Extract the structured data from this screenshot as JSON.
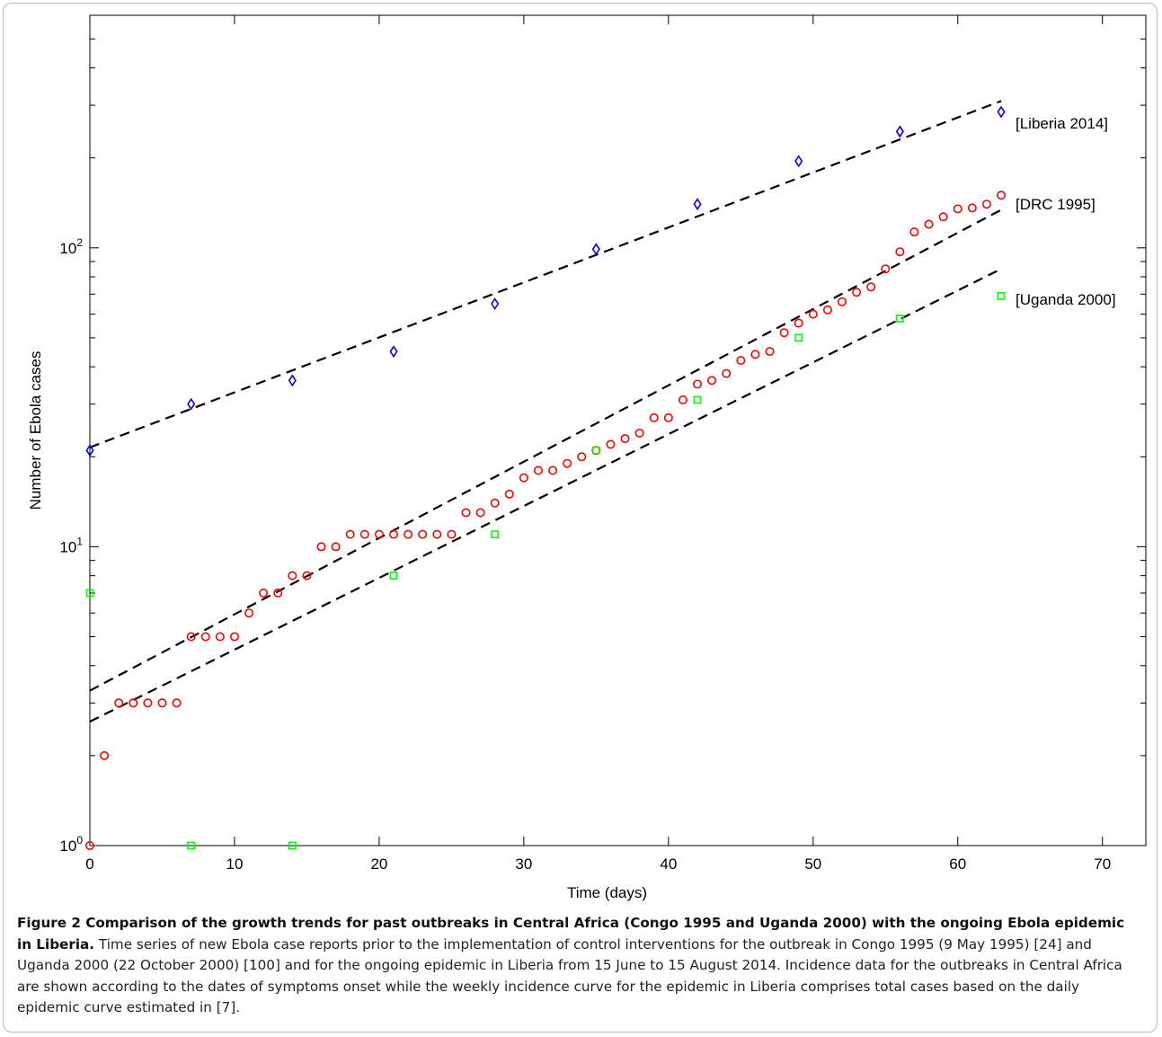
{
  "chart_data": {
    "type": "scatter",
    "xlabel": "Time (days)",
    "ylabel": "Number of Ebola cases",
    "xlim": [
      0,
      73
    ],
    "ylim": [
      1,
      600
    ],
    "yscale": "log",
    "xticks": [
      0,
      10,
      20,
      30,
      40,
      50,
      60,
      70
    ],
    "yticks": [
      {
        "value": 1,
        "base": "10",
        "exp": "0"
      },
      {
        "value": 10,
        "base": "10",
        "exp": "1"
      },
      {
        "value": 100,
        "base": "10",
        "exp": "2"
      }
    ],
    "grid": false,
    "series": [
      {
        "name": "[Liberia 2014]",
        "marker": "diamond",
        "color": "#0000ff",
        "x": [
          0,
          7,
          14,
          21,
          28,
          35,
          42,
          49,
          56,
          63
        ],
        "y": [
          21,
          30,
          36,
          45,
          65,
          99,
          140,
          195,
          245,
          285
        ]
      },
      {
        "name": "[DRC 1995]",
        "marker": "circle",
        "color": "#ff0000",
        "x": [
          0,
          1,
          2,
          3,
          4,
          5,
          6,
          7,
          8,
          9,
          10,
          11,
          12,
          13,
          14,
          15,
          16,
          17,
          18,
          19,
          20,
          21,
          22,
          23,
          24,
          25,
          26,
          27,
          28,
          29,
          30,
          31,
          32,
          33,
          34,
          35,
          36,
          37,
          38,
          39,
          40,
          41,
          42,
          43,
          44,
          45,
          46,
          47,
          48,
          49,
          50,
          51,
          52,
          53,
          54,
          55,
          56,
          57,
          58,
          59,
          60,
          61,
          62,
          63
        ],
        "y": [
          1,
          2,
          3,
          3,
          3,
          3,
          3,
          5,
          5,
          5,
          5,
          6,
          7,
          7,
          8,
          8,
          10,
          10,
          11,
          11,
          11,
          11,
          11,
          11,
          11,
          11,
          13,
          13,
          14,
          15,
          17,
          18,
          18,
          19,
          20,
          21,
          22,
          23,
          24,
          27,
          27,
          31,
          35,
          36,
          38,
          42,
          44,
          45,
          52,
          56,
          60,
          62,
          66,
          71,
          74,
          85,
          97,
          113,
          120,
          127,
          135,
          136,
          140,
          150
        ]
      },
      {
        "name": "[Uganda 2000]",
        "marker": "square",
        "color": "#00ff00",
        "x": [
          0,
          7,
          14,
          21,
          28,
          35,
          42,
          49,
          56,
          63
        ],
        "y": [
          7,
          1,
          1,
          8,
          11,
          21,
          31,
          50,
          58,
          69
        ]
      }
    ],
    "fits": [
      {
        "x": [
          0,
          63
        ],
        "y": [
          21.5,
          310
        ]
      },
      {
        "x": [
          0,
          63
        ],
        "y": [
          3.3,
          134
        ]
      },
      {
        "x": [
          0,
          63
        ],
        "y": [
          2.6,
          85
        ]
      }
    ]
  },
  "caption": {
    "bold": "Figure 2 Comparison of the growth trends for past outbreaks in Central Africa (Congo 1995 and Uganda 2000) with the ongoing Ebola epidemic in Liberia.",
    "text": "Time series of new Ebola case reports prior to the implementation of control interventions for the outbreak in Congo 1995 (9 May 1995) [24] and Uganda 2000 (22 October 2000) [100] and for the ongoing epidemic in Liberia from 15 June to 15 August 2014. Incidence data for the outbreaks in Central Africa are shown according to the dates of symptoms onset while the weekly incidence curve for the epidemic in Liberia comprises total cases based on the daily epidemic curve estimated in [7]."
  }
}
